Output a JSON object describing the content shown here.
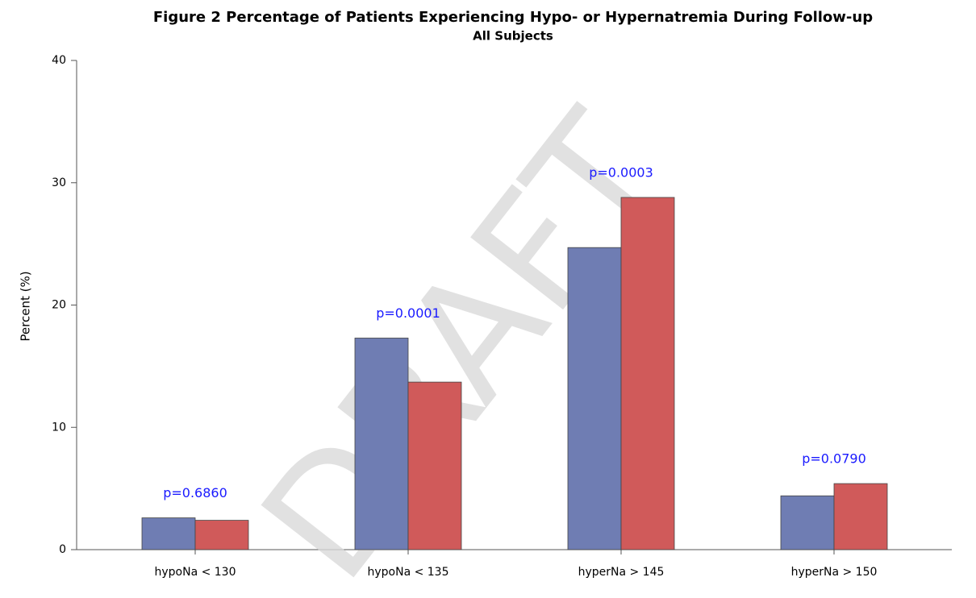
{
  "chart_data": {
    "type": "bar",
    "title": "Figure 2 Percentage of Patients Experiencing Hypo- or Hypernatremia During Follow-up",
    "subtitle": "All Subjects",
    "ylabel": "Percent (%)",
    "watermark": "DRAFT",
    "categories": [
      "hypoNa < 130",
      "hypoNa < 135",
      "hyperNa > 145",
      "hyperNa > 150"
    ],
    "series": [
      {
        "color": "#6f7db3",
        "values": [
          2.6,
          17.3,
          24.7,
          4.4
        ]
      },
      {
        "color": "#d05a5a",
        "values": [
          2.4,
          13.7,
          28.8,
          5.4
        ]
      }
    ],
    "annotations": [
      "p=0.6860",
      "p=0.0001",
      "p=0.0003",
      "p=0.0790"
    ],
    "annotation_color": "#1a1aff",
    "ylim": [
      0,
      40
    ],
    "yticks": [
      0,
      10,
      20,
      30,
      40
    ],
    "grid": false
  }
}
